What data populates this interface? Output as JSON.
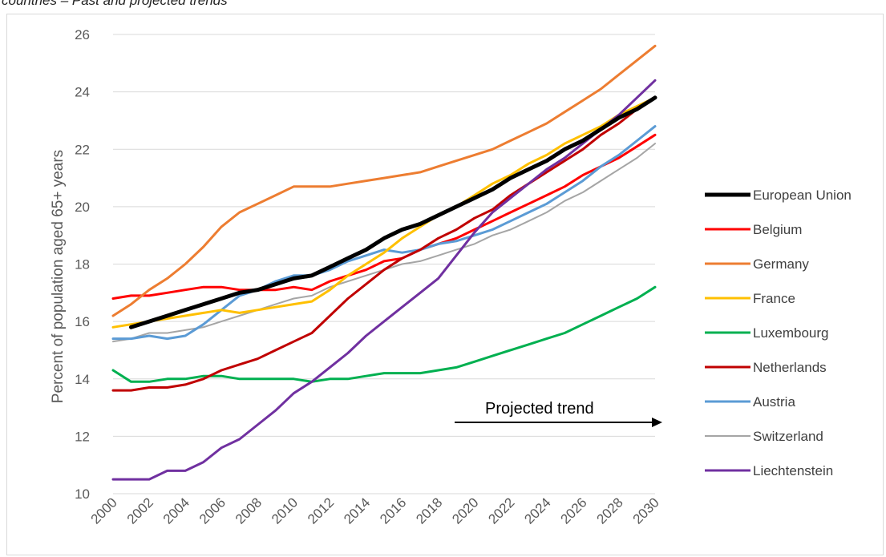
{
  "caption": "countries – Past and projected trends",
  "chart_data": {
    "type": "line",
    "title": "",
    "xlabel": "",
    "ylabel": "Percent of population aged 65+ years",
    "ylim": [
      10,
      26
    ],
    "yticks": [
      "10",
      "12",
      "14",
      "16",
      "18",
      "20",
      "22",
      "24",
      "26"
    ],
    "xlim": [
      2000,
      2030
    ],
    "xticks": [
      "2000",
      "2002",
      "2004",
      "2006",
      "2008",
      "2010",
      "2012",
      "2014",
      "2016",
      "2018",
      "2020",
      "2022",
      "2024",
      "2026",
      "2028",
      "2030"
    ],
    "grid": "horizontal",
    "legend_position": "right",
    "annotation": "Projected trend",
    "series": [
      {
        "name": "European Union",
        "color": "#000000",
        "width": 5,
        "points": [
          [
            2001,
            15.8
          ],
          [
            2002,
            16.0
          ],
          [
            2003,
            16.2
          ],
          [
            2004,
            16.4
          ],
          [
            2005,
            16.6
          ],
          [
            2006,
            16.8
          ],
          [
            2007,
            17.0
          ],
          [
            2008,
            17.1
          ],
          [
            2009,
            17.3
          ],
          [
            2010,
            17.5
          ],
          [
            2011,
            17.6
          ],
          [
            2012,
            17.9
          ],
          [
            2013,
            18.2
          ],
          [
            2014,
            18.5
          ],
          [
            2015,
            18.9
          ],
          [
            2016,
            19.2
          ],
          [
            2017,
            19.4
          ],
          [
            2018,
            19.7
          ],
          [
            2019,
            20.0
          ],
          [
            2020,
            20.3
          ],
          [
            2021,
            20.6
          ],
          [
            2022,
            21.0
          ],
          [
            2023,
            21.3
          ],
          [
            2024,
            21.6
          ],
          [
            2025,
            22.0
          ],
          [
            2026,
            22.3
          ],
          [
            2027,
            22.7
          ],
          [
            2028,
            23.1
          ],
          [
            2029,
            23.4
          ],
          [
            2030,
            23.8
          ]
        ]
      },
      {
        "name": "Belgium",
        "color": "#ff0000",
        "width": 3,
        "points": [
          [
            2000,
            16.8
          ],
          [
            2001,
            16.9
          ],
          [
            2002,
            16.9
          ],
          [
            2003,
            17.0
          ],
          [
            2004,
            17.1
          ],
          [
            2005,
            17.2
          ],
          [
            2006,
            17.2
          ],
          [
            2007,
            17.1
          ],
          [
            2008,
            17.1
          ],
          [
            2009,
            17.1
          ],
          [
            2010,
            17.2
          ],
          [
            2011,
            17.1
          ],
          [
            2012,
            17.4
          ],
          [
            2013,
            17.6
          ],
          [
            2014,
            17.8
          ],
          [
            2015,
            18.1
          ],
          [
            2016,
            18.2
          ],
          [
            2017,
            18.5
          ],
          [
            2018,
            18.7
          ],
          [
            2019,
            18.9
          ],
          [
            2020,
            19.2
          ],
          [
            2021,
            19.5
          ],
          [
            2022,
            19.8
          ],
          [
            2023,
            20.1
          ],
          [
            2024,
            20.4
          ],
          [
            2025,
            20.7
          ],
          [
            2026,
            21.1
          ],
          [
            2027,
            21.4
          ],
          [
            2028,
            21.7
          ],
          [
            2029,
            22.1
          ],
          [
            2030,
            22.5
          ]
        ]
      },
      {
        "name": "Germany",
        "color": "#ed7d31",
        "width": 3,
        "points": [
          [
            2000,
            16.2
          ],
          [
            2001,
            16.6
          ],
          [
            2002,
            17.1
          ],
          [
            2003,
            17.5
          ],
          [
            2004,
            18.0
          ],
          [
            2005,
            18.6
          ],
          [
            2006,
            19.3
          ],
          [
            2007,
            19.8
          ],
          [
            2008,
            20.1
          ],
          [
            2009,
            20.4
          ],
          [
            2010,
            20.7
          ],
          [
            2011,
            20.7
          ],
          [
            2012,
            20.7
          ],
          [
            2013,
            20.8
          ],
          [
            2014,
            20.9
          ],
          [
            2015,
            21.0
          ],
          [
            2016,
            21.1
          ],
          [
            2017,
            21.2
          ],
          [
            2018,
            21.4
          ],
          [
            2019,
            21.6
          ],
          [
            2020,
            21.8
          ],
          [
            2021,
            22.0
          ],
          [
            2022,
            22.3
          ],
          [
            2023,
            22.6
          ],
          [
            2024,
            22.9
          ],
          [
            2025,
            23.3
          ],
          [
            2026,
            23.7
          ],
          [
            2027,
            24.1
          ],
          [
            2028,
            24.6
          ],
          [
            2029,
            25.1
          ],
          [
            2030,
            25.6
          ]
        ]
      },
      {
        "name": "France",
        "color": "#ffc000",
        "width": 3,
        "points": [
          [
            2000,
            15.8
          ],
          [
            2001,
            15.9
          ],
          [
            2002,
            16.0
          ],
          [
            2003,
            16.1
          ],
          [
            2004,
            16.2
          ],
          [
            2005,
            16.3
          ],
          [
            2006,
            16.4
          ],
          [
            2007,
            16.3
          ],
          [
            2008,
            16.4
          ],
          [
            2009,
            16.5
          ],
          [
            2010,
            16.6
          ],
          [
            2011,
            16.7
          ],
          [
            2012,
            17.1
          ],
          [
            2013,
            17.6
          ],
          [
            2014,
            18.0
          ],
          [
            2015,
            18.4
          ],
          [
            2016,
            18.9
          ],
          [
            2017,
            19.3
          ],
          [
            2018,
            19.7
          ],
          [
            2019,
            20.0
          ],
          [
            2020,
            20.4
          ],
          [
            2021,
            20.8
          ],
          [
            2022,
            21.1
          ],
          [
            2023,
            21.5
          ],
          [
            2024,
            21.8
          ],
          [
            2025,
            22.2
          ],
          [
            2026,
            22.5
          ],
          [
            2027,
            22.8
          ],
          [
            2028,
            23.2
          ],
          [
            2029,
            23.5
          ],
          [
            2030,
            23.8
          ]
        ]
      },
      {
        "name": "Luxembourg",
        "color": "#00b050",
        "width": 3,
        "points": [
          [
            2000,
            14.3
          ],
          [
            2001,
            13.9
          ],
          [
            2002,
            13.9
          ],
          [
            2003,
            14.0
          ],
          [
            2004,
            14.0
          ],
          [
            2005,
            14.1
          ],
          [
            2006,
            14.1
          ],
          [
            2007,
            14.0
          ],
          [
            2008,
            14.0
          ],
          [
            2009,
            14.0
          ],
          [
            2010,
            14.0
          ],
          [
            2011,
            13.9
          ],
          [
            2012,
            14.0
          ],
          [
            2013,
            14.0
          ],
          [
            2014,
            14.1
          ],
          [
            2015,
            14.2
          ],
          [
            2016,
            14.2
          ],
          [
            2017,
            14.2
          ],
          [
            2018,
            14.3
          ],
          [
            2019,
            14.4
          ],
          [
            2020,
            14.6
          ],
          [
            2021,
            14.8
          ],
          [
            2022,
            15.0
          ],
          [
            2023,
            15.2
          ],
          [
            2024,
            15.4
          ],
          [
            2025,
            15.6
          ],
          [
            2026,
            15.9
          ],
          [
            2027,
            16.2
          ],
          [
            2028,
            16.5
          ],
          [
            2029,
            16.8
          ],
          [
            2030,
            17.2
          ]
        ]
      },
      {
        "name": "Netherlands",
        "color": "#c00000",
        "width": 3,
        "points": [
          [
            2000,
            13.6
          ],
          [
            2001,
            13.6
          ],
          [
            2002,
            13.7
          ],
          [
            2003,
            13.7
          ],
          [
            2004,
            13.8
          ],
          [
            2005,
            14.0
          ],
          [
            2006,
            14.3
          ],
          [
            2007,
            14.5
          ],
          [
            2008,
            14.7
          ],
          [
            2009,
            15.0
          ],
          [
            2010,
            15.3
          ],
          [
            2011,
            15.6
          ],
          [
            2012,
            16.2
          ],
          [
            2013,
            16.8
          ],
          [
            2014,
            17.3
          ],
          [
            2015,
            17.8
          ],
          [
            2016,
            18.2
          ],
          [
            2017,
            18.5
          ],
          [
            2018,
            18.9
          ],
          [
            2019,
            19.2
          ],
          [
            2020,
            19.6
          ],
          [
            2021,
            19.9
          ],
          [
            2022,
            20.4
          ],
          [
            2023,
            20.8
          ],
          [
            2024,
            21.2
          ],
          [
            2025,
            21.6
          ],
          [
            2026,
            22.0
          ],
          [
            2027,
            22.5
          ],
          [
            2028,
            22.9
          ],
          [
            2029,
            23.4
          ],
          [
            2030,
            23.8
          ]
        ]
      },
      {
        "name": "Austria",
        "color": "#5b9bd5",
        "width": 3,
        "points": [
          [
            2000,
            15.4
          ],
          [
            2001,
            15.4
          ],
          [
            2002,
            15.5
          ],
          [
            2003,
            15.4
          ],
          [
            2004,
            15.5
          ],
          [
            2005,
            15.9
          ],
          [
            2006,
            16.4
          ],
          [
            2007,
            16.9
          ],
          [
            2008,
            17.1
          ],
          [
            2009,
            17.4
          ],
          [
            2010,
            17.6
          ],
          [
            2011,
            17.6
          ],
          [
            2012,
            17.8
          ],
          [
            2013,
            18.1
          ],
          [
            2014,
            18.3
          ],
          [
            2015,
            18.5
          ],
          [
            2016,
            18.4
          ],
          [
            2017,
            18.5
          ],
          [
            2018,
            18.7
          ],
          [
            2019,
            18.8
          ],
          [
            2020,
            19.0
          ],
          [
            2021,
            19.2
          ],
          [
            2022,
            19.5
          ],
          [
            2023,
            19.8
          ],
          [
            2024,
            20.1
          ],
          [
            2025,
            20.5
          ],
          [
            2026,
            20.9
          ],
          [
            2027,
            21.4
          ],
          [
            2028,
            21.8
          ],
          [
            2029,
            22.3
          ],
          [
            2030,
            22.8
          ]
        ]
      },
      {
        "name": "Switzerland",
        "color": "#a5a5a5",
        "width": 2,
        "points": [
          [
            2000,
            15.3
          ],
          [
            2001,
            15.4
          ],
          [
            2002,
            15.6
          ],
          [
            2003,
            15.6
          ],
          [
            2004,
            15.7
          ],
          [
            2005,
            15.8
          ],
          [
            2006,
            16.0
          ],
          [
            2007,
            16.2
          ],
          [
            2008,
            16.4
          ],
          [
            2009,
            16.6
          ],
          [
            2010,
            16.8
          ],
          [
            2011,
            16.9
          ],
          [
            2012,
            17.2
          ],
          [
            2013,
            17.4
          ],
          [
            2014,
            17.6
          ],
          [
            2015,
            17.8
          ],
          [
            2016,
            18.0
          ],
          [
            2017,
            18.1
          ],
          [
            2018,
            18.3
          ],
          [
            2019,
            18.5
          ],
          [
            2020,
            18.7
          ],
          [
            2021,
            19.0
          ],
          [
            2022,
            19.2
          ],
          [
            2023,
            19.5
          ],
          [
            2024,
            19.8
          ],
          [
            2025,
            20.2
          ],
          [
            2026,
            20.5
          ],
          [
            2027,
            20.9
          ],
          [
            2028,
            21.3
          ],
          [
            2029,
            21.7
          ],
          [
            2030,
            22.2
          ]
        ]
      },
      {
        "name": "Liechtenstein",
        "color": "#7030a0",
        "width": 3,
        "points": [
          [
            2000,
            10.5
          ],
          [
            2001,
            10.5
          ],
          [
            2002,
            10.5
          ],
          [
            2003,
            10.8
          ],
          [
            2004,
            10.8
          ],
          [
            2005,
            11.1
          ],
          [
            2006,
            11.6
          ],
          [
            2007,
            11.9
          ],
          [
            2008,
            12.4
          ],
          [
            2009,
            12.9
          ],
          [
            2010,
            13.5
          ],
          [
            2011,
            13.9
          ],
          [
            2012,
            14.4
          ],
          [
            2013,
            14.9
          ],
          [
            2014,
            15.5
          ],
          [
            2015,
            16.0
          ],
          [
            2016,
            16.5
          ],
          [
            2017,
            17.0
          ],
          [
            2018,
            17.5
          ],
          [
            2019,
            18.3
          ],
          [
            2020,
            19.1
          ],
          [
            2021,
            19.8
          ],
          [
            2022,
            20.3
          ],
          [
            2023,
            20.8
          ],
          [
            2024,
            21.3
          ],
          [
            2025,
            21.7
          ],
          [
            2026,
            22.2
          ],
          [
            2027,
            22.7
          ],
          [
            2028,
            23.2
          ],
          [
            2029,
            23.8
          ],
          [
            2030,
            24.4
          ]
        ]
      }
    ]
  }
}
